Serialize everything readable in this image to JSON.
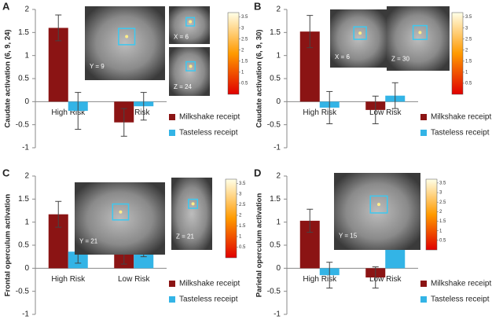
{
  "chart_data": [
    {
      "type": "bar",
      "panel": "A",
      "ylabel": "Caudate activation (6, 9, 24)",
      "categories": [
        "High Risk",
        "Low Risk"
      ],
      "series": [
        {
          "name": "Milkshake receipt",
          "color": "#8b1414",
          "values": [
            1.6,
            -0.45
          ],
          "errors": [
            0.28,
            0.3
          ]
        },
        {
          "name": "Tasteless receipt",
          "color": "#33b4e6",
          "values": [
            -0.2,
            -0.1
          ],
          "errors": [
            0.4,
            0.3
          ]
        }
      ],
      "ylim": [
        -1,
        2
      ],
      "yticks": [
        -1,
        -0.5,
        0,
        0.5,
        1,
        1.5,
        2
      ],
      "images": [
        "Y = 9",
        "X = 6",
        "Z = 24"
      ],
      "colorbar_ticks": [
        0.5,
        1,
        1.5,
        2,
        2.5,
        3,
        3.5
      ]
    },
    {
      "type": "bar",
      "panel": "B",
      "ylabel": "Caudate activation (6, 9, 30)",
      "categories": [
        "High Risk",
        "Low Risk"
      ],
      "series": [
        {
          "name": "Milkshake receipt",
          "color": "#8b1414",
          "values": [
            1.52,
            -0.18
          ],
          "errors": [
            0.35,
            0.3
          ]
        },
        {
          "name": "Tasteless receipt",
          "color": "#33b4e6",
          "values": [
            -0.13,
            0.13
          ],
          "errors": [
            0.35,
            0.28
          ]
        }
      ],
      "ylim": [
        -1,
        2
      ],
      "yticks": [
        -1,
        -0.5,
        0,
        0.5,
        1,
        1.5,
        2
      ],
      "images": [
        "X = 6",
        "Z = 30"
      ],
      "colorbar_ticks": [
        0.5,
        1,
        1.5,
        2,
        2.5,
        3,
        3.5
      ]
    },
    {
      "type": "bar",
      "panel": "C",
      "ylabel": "Frontal operculum activation",
      "categories": [
        "High Risk",
        "Low Risk"
      ],
      "series": [
        {
          "name": "Milkshake receipt",
          "color": "#8b1414",
          "values": [
            1.17,
            0.36
          ],
          "errors": [
            0.28,
            0.27
          ]
        },
        {
          "name": "Tasteless receipt",
          "color": "#33b4e6",
          "values": [
            0.36,
            0.5
          ],
          "errors": [
            0.25,
            0.25
          ]
        }
      ],
      "ylim": [
        -1,
        2
      ],
      "yticks": [
        -1,
        -0.5,
        0,
        0.5,
        1,
        1.5,
        2
      ],
      "images": [
        "Y = 21",
        "Z = 21"
      ],
      "colorbar_ticks": [
        0.5,
        1,
        1.5,
        2,
        2.5,
        3,
        3.5
      ]
    },
    {
      "type": "bar",
      "panel": "D",
      "ylabel": "Parietal operculum activation",
      "categories": [
        "High Risk",
        "Low Risk"
      ],
      "series": [
        {
          "name": "Milkshake receipt",
          "color": "#8b1414",
          "values": [
            1.03,
            -0.2
          ],
          "errors": [
            0.25,
            0.23
          ]
        },
        {
          "name": "Tasteless receipt",
          "color": "#33b4e6",
          "values": [
            -0.15,
            0.7
          ],
          "errors": [
            0.28,
            0.22
          ]
        }
      ],
      "ylim": [
        -1,
        2
      ],
      "yticks": [
        -1,
        -0.5,
        0,
        0.5,
        1,
        1.5,
        2
      ],
      "images": [
        "Y = 15"
      ],
      "colorbar_ticks": [
        0.5,
        1,
        1.5,
        2,
        2.5,
        3,
        3.5
      ]
    }
  ]
}
